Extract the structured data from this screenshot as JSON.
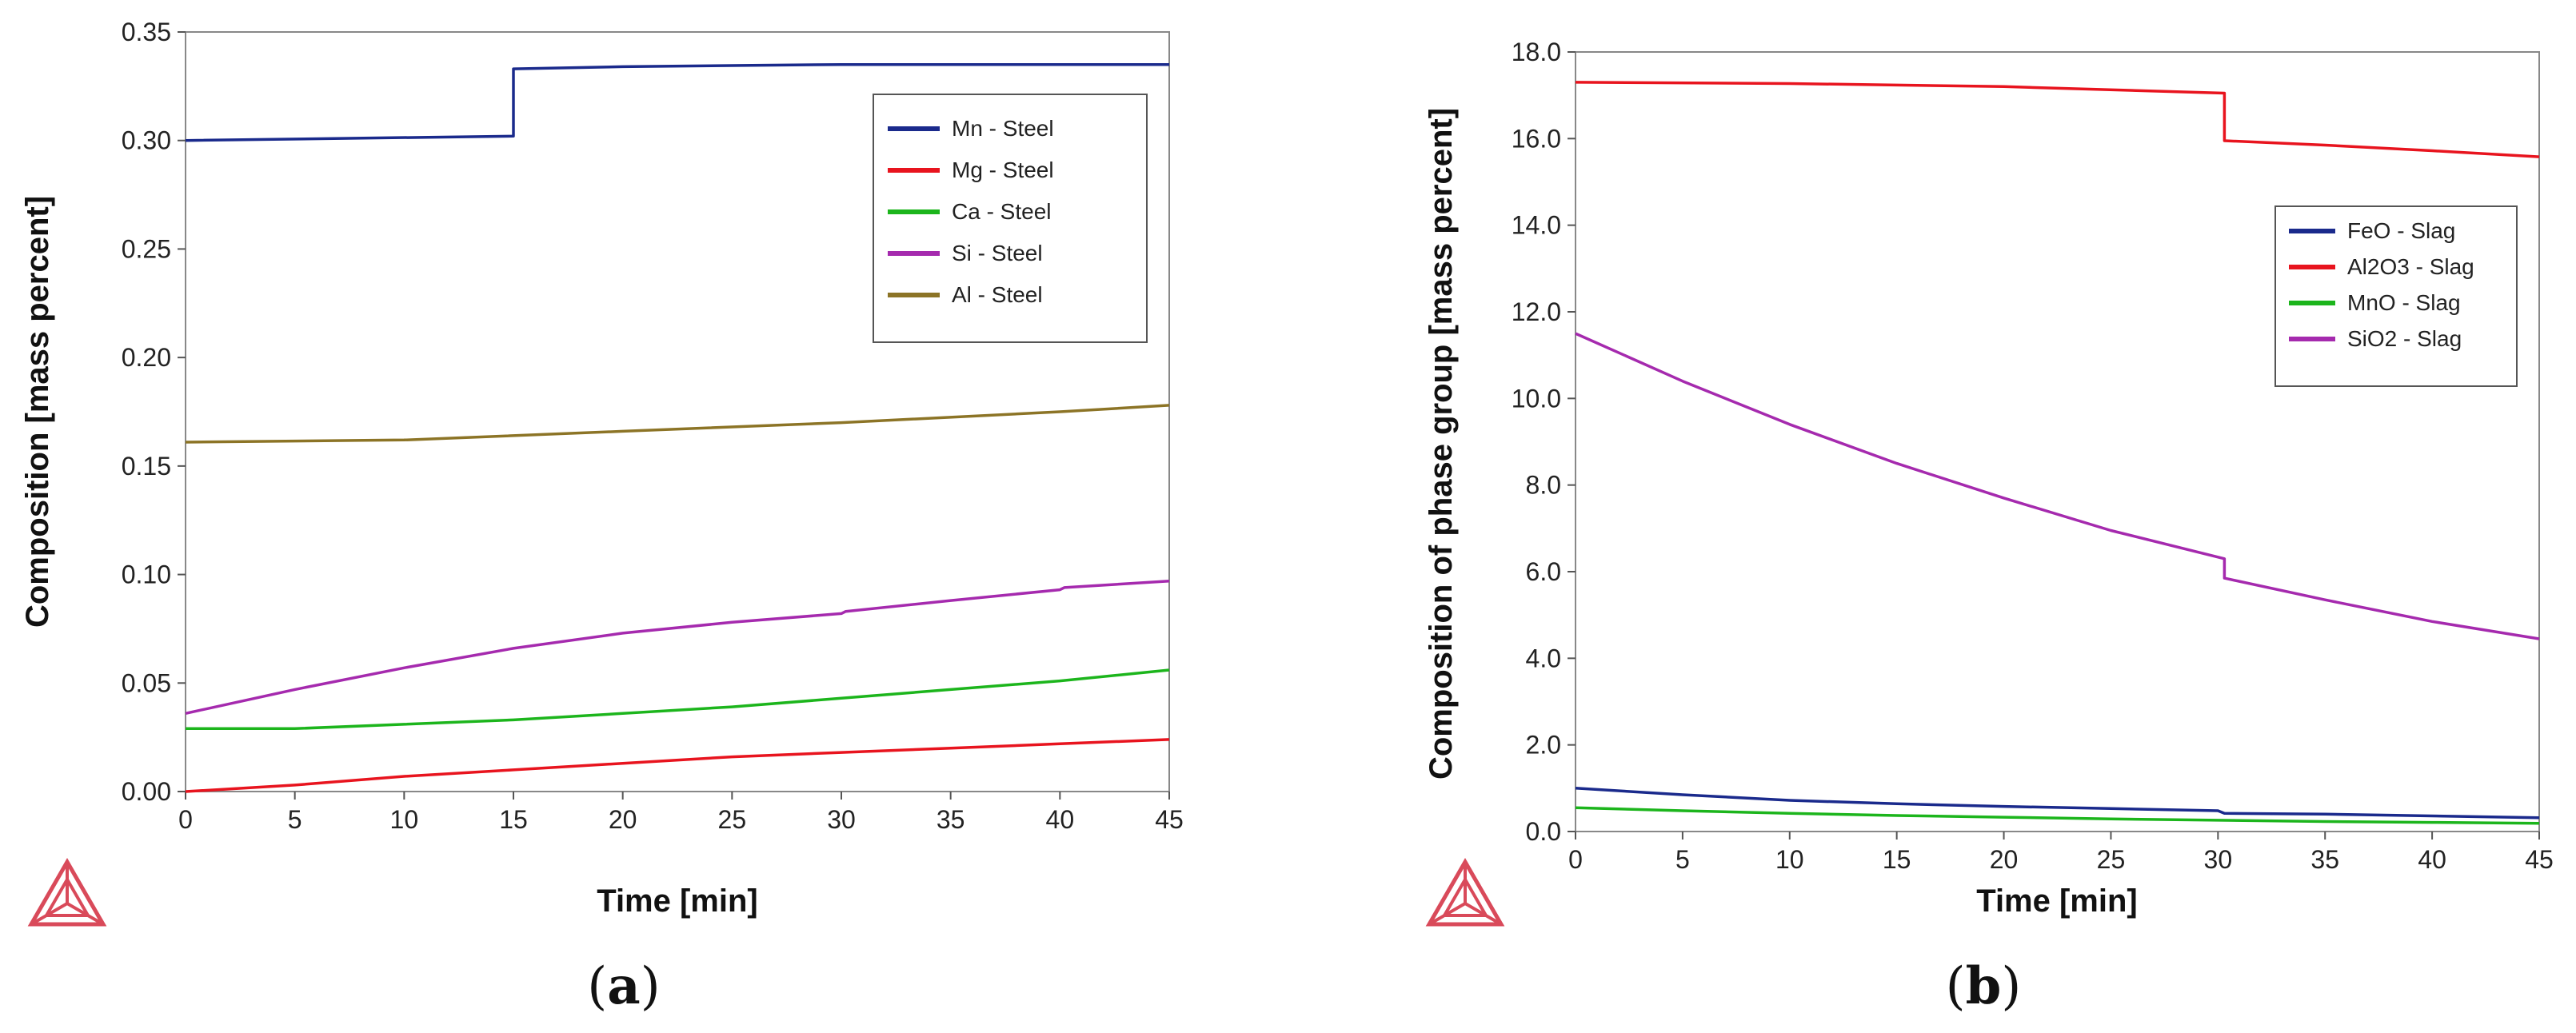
{
  "chart_data": [
    {
      "type": "line",
      "panel_label": "a",
      "xlabel": "Time [min]",
      "ylabel": "Composition [mass percent]",
      "xlim": [
        0,
        45
      ],
      "ylim": [
        0,
        0.35
      ],
      "x_ticks": [
        0,
        5,
        10,
        15,
        20,
        25,
        30,
        35,
        40,
        45
      ],
      "y_ticks": [
        "0.00",
        "0.05",
        "0.10",
        "0.15",
        "0.20",
        "0.25",
        "0.30",
        "0.35"
      ],
      "legend_position": "top-right",
      "series": [
        {
          "name": "Mn - Steel",
          "color": "#1a2a8c",
          "points": [
            [
              0,
              0.3
            ],
            [
              15,
              0.302
            ],
            [
              15,
              0.333
            ],
            [
              20,
              0.334
            ],
            [
              30,
              0.335
            ],
            [
              40,
              0.335
            ],
            [
              45,
              0.335
            ]
          ]
        },
        {
          "name": "Mg - Steel",
          "color": "#e8141e",
          "points": [
            [
              0,
              0.0
            ],
            [
              5,
              0.003
            ],
            [
              10,
              0.007
            ],
            [
              15,
              0.01
            ],
            [
              20,
              0.013
            ],
            [
              25,
              0.016
            ],
            [
              30,
              0.018
            ],
            [
              35,
              0.02
            ],
            [
              40,
              0.022
            ],
            [
              45,
              0.024
            ]
          ]
        },
        {
          "name": "Ca - Steel",
          "color": "#1cb51c",
          "points": [
            [
              0,
              0.029
            ],
            [
              5,
              0.029
            ],
            [
              10,
              0.031
            ],
            [
              15,
              0.033
            ],
            [
              20,
              0.036
            ],
            [
              25,
              0.039
            ],
            [
              30,
              0.043
            ],
            [
              35,
              0.047
            ],
            [
              40,
              0.051
            ],
            [
              45,
              0.056
            ]
          ]
        },
        {
          "name": "Si - Steel",
          "color": "#a52aae",
          "points": [
            [
              0,
              0.036
            ],
            [
              5,
              0.047
            ],
            [
              10,
              0.057
            ],
            [
              15,
              0.066
            ],
            [
              20,
              0.073
            ],
            [
              25,
              0.078
            ],
            [
              30,
              0.082
            ],
            [
              30.2,
              0.083
            ],
            [
              35,
              0.088
            ],
            [
              40,
              0.093
            ],
            [
              40.2,
              0.094
            ],
            [
              45,
              0.097
            ]
          ]
        },
        {
          "name": "Al - Steel",
          "color": "#8c7426",
          "points": [
            [
              0,
              0.161
            ],
            [
              10,
              0.162
            ],
            [
              20,
              0.166
            ],
            [
              30,
              0.17
            ],
            [
              40,
              0.175
            ],
            [
              45,
              0.178
            ]
          ]
        }
      ]
    },
    {
      "type": "line",
      "panel_label": "b",
      "xlabel": "Time [min]",
      "ylabel": "Composition of phase group  [mass percent]",
      "xlim": [
        0,
        45
      ],
      "ylim": [
        0,
        18
      ],
      "x_ticks": [
        0,
        5,
        10,
        15,
        20,
        25,
        30,
        35,
        40,
        45
      ],
      "y_ticks": [
        "0.0",
        "2.0",
        "4.0",
        "6.0",
        "8.0",
        "10.0",
        "12.0",
        "14.0",
        "16.0",
        "18.0"
      ],
      "legend_position": "right",
      "series": [
        {
          "name": "FeO - Slag",
          "color": "#1a2a8c",
          "points": [
            [
              0,
              1.0
            ],
            [
              5,
              0.85
            ],
            [
              10,
              0.72
            ],
            [
              15,
              0.64
            ],
            [
              20,
              0.58
            ],
            [
              25,
              0.53
            ],
            [
              30,
              0.48
            ],
            [
              30.3,
              0.42
            ],
            [
              35,
              0.4
            ],
            [
              40,
              0.36
            ],
            [
              45,
              0.32
            ]
          ]
        },
        {
          "name": "Al2O3 - Slag",
          "color": "#e8141e",
          "points": [
            [
              0,
              17.3
            ],
            [
              10,
              17.27
            ],
            [
              20,
              17.2
            ],
            [
              30.3,
              17.05
            ],
            [
              30.3,
              15.95
            ],
            [
              35,
              15.85
            ],
            [
              40,
              15.72
            ],
            [
              45,
              15.58
            ]
          ]
        },
        {
          "name": "MnO - Slag",
          "color": "#1cb51c",
          "points": [
            [
              0,
              0.55
            ],
            [
              5,
              0.48
            ],
            [
              10,
              0.42
            ],
            [
              15,
              0.37
            ],
            [
              20,
              0.33
            ],
            [
              25,
              0.29
            ],
            [
              30,
              0.26
            ],
            [
              35,
              0.23
            ],
            [
              40,
              0.21
            ],
            [
              45,
              0.19
            ]
          ]
        },
        {
          "name": "SiO2 - Slag",
          "color": "#a52aae",
          "points": [
            [
              0,
              11.5
            ],
            [
              5,
              10.4
            ],
            [
              10,
              9.4
            ],
            [
              15,
              8.5
            ],
            [
              20,
              7.7
            ],
            [
              25,
              6.95
            ],
            [
              30.3,
              6.3
            ],
            [
              30.3,
              5.85
            ],
            [
              35,
              5.35
            ],
            [
              40,
              4.85
            ],
            [
              45,
              4.45
            ]
          ]
        }
      ]
    }
  ]
}
